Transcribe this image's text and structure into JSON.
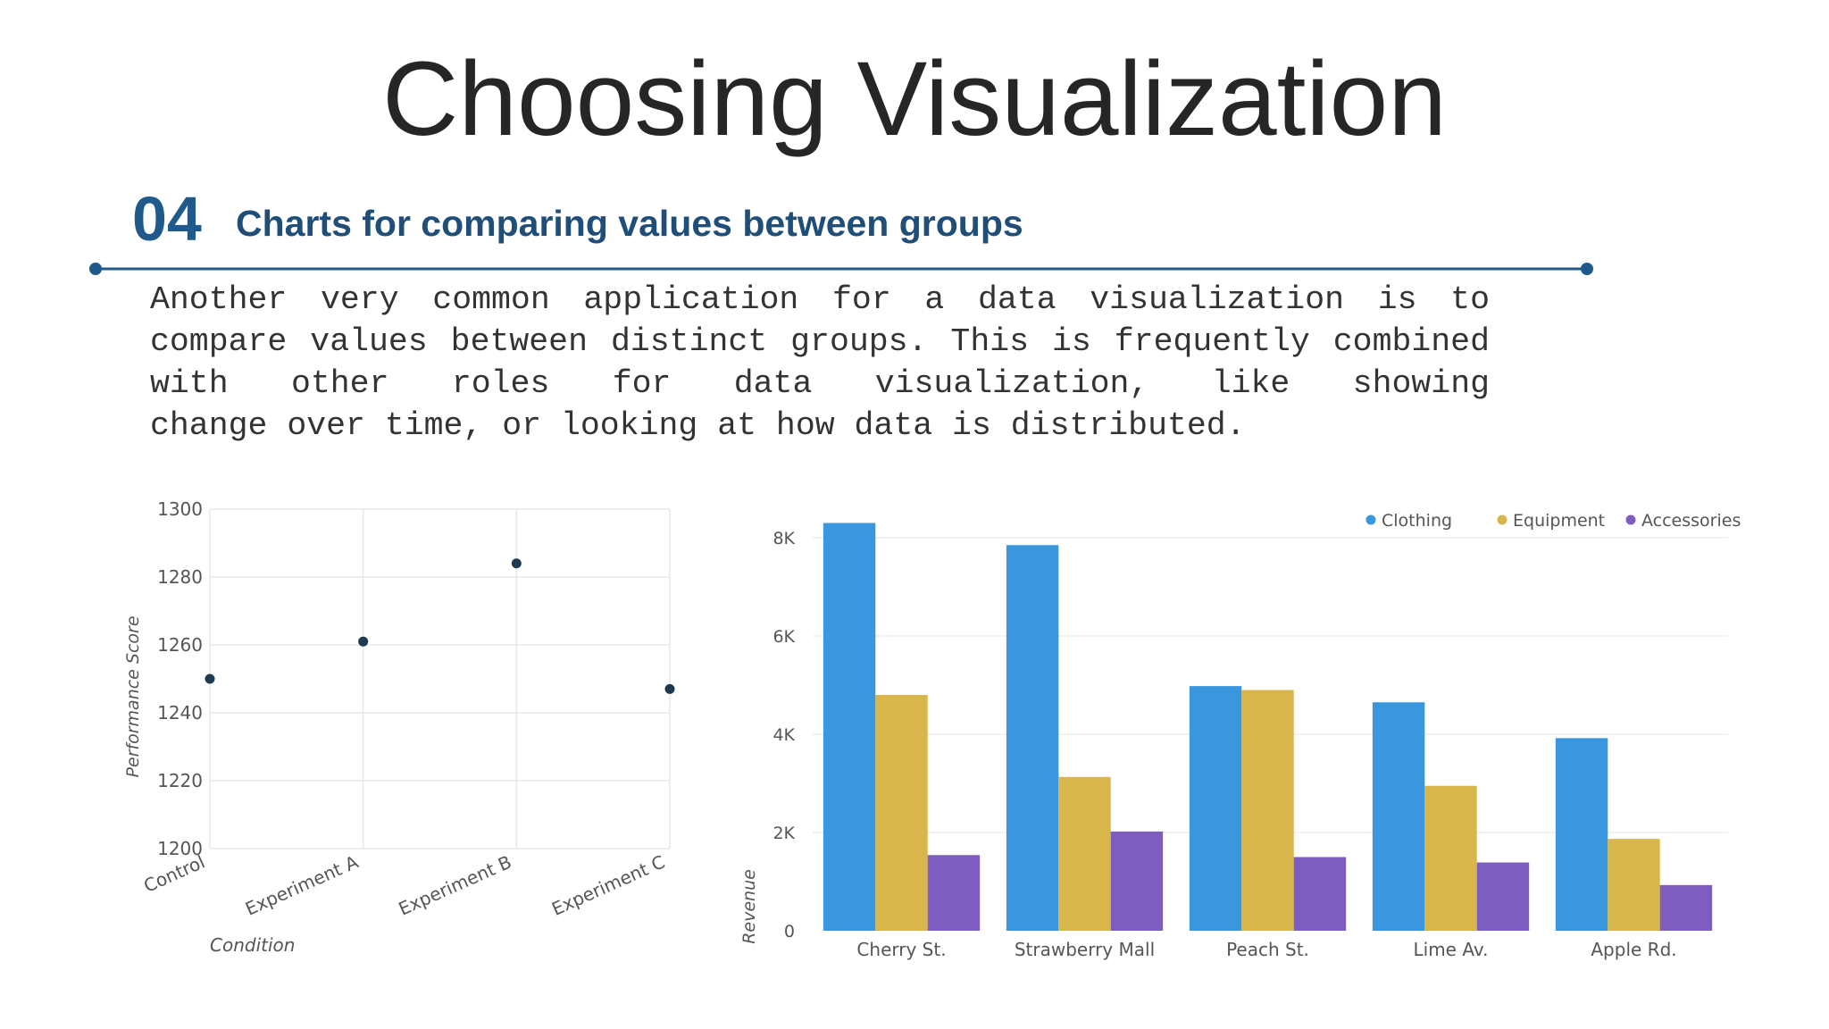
{
  "slide": {
    "title": "Choosing Visualization",
    "section_number": "04",
    "section_title": "Charts for comparing values between groups",
    "body": "Another very common application for a data visualization is to compare values between distinct groups. This is frequently combined with other roles for data visualization, like showing change over time, or looking at how data is distributed."
  },
  "colors": {
    "title": "#262626",
    "section": "#1f4e79",
    "rule": "#1f5a8a",
    "point": "#1e3a52",
    "clothing": "#3b97dd",
    "equipment": "#d9b64b",
    "accessories": "#7e5dc1"
  },
  "chart_data": [
    {
      "type": "scatter",
      "categories": [
        "Control",
        "Experiment A",
        "Experiment B",
        "Experiment C"
      ],
      "values": [
        1250,
        1261,
        1284,
        1247
      ],
      "title": "",
      "xlabel": "Condition",
      "ylabel": "Performance Score",
      "ylim": [
        1200,
        1300
      ],
      "yticks": [
        "1300",
        "1280",
        "1260",
        "1240",
        "1220",
        "1200"
      ],
      "grid": true
    },
    {
      "type": "bar",
      "categories": [
        "Cherry St.",
        "Strawberry Mall",
        "Peach St.",
        "Lime Av.",
        "Apple Rd."
      ],
      "series": [
        {
          "name": "Clothing",
          "values": [
            8300,
            7850,
            4980,
            4650,
            3920
          ]
        },
        {
          "name": "Equipment",
          "values": [
            4800,
            3130,
            4900,
            2950,
            1870
          ]
        },
        {
          "name": "Accessories",
          "values": [
            1540,
            2020,
            1500,
            1390,
            930
          ]
        }
      ],
      "title": "",
      "xlabel": "",
      "ylabel": "Revenue",
      "ylim": [
        0,
        8400
      ],
      "yticks": [
        "8K",
        "6K",
        "4K",
        "2K",
        "0"
      ],
      "legend": "top-right",
      "grid": true
    }
  ]
}
